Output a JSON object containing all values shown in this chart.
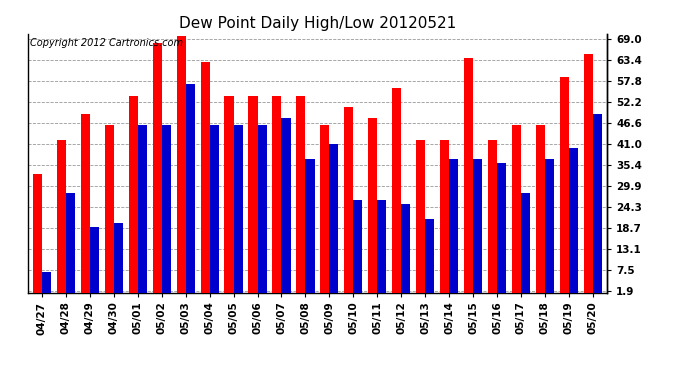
{
  "title": "Dew Point Daily High/Low 20120521",
  "copyright": "Copyright 2012 Cartronics.com",
  "dates": [
    "04/27",
    "04/28",
    "04/29",
    "04/30",
    "05/01",
    "05/02",
    "05/03",
    "05/04",
    "05/05",
    "05/06",
    "05/07",
    "05/08",
    "05/09",
    "05/10",
    "05/11",
    "05/12",
    "05/13",
    "05/14",
    "05/15",
    "05/16",
    "05/17",
    "05/18",
    "05/19",
    "05/20"
  ],
  "high": [
    33.0,
    42.0,
    49.0,
    46.0,
    54.0,
    68.0,
    70.0,
    63.0,
    54.0,
    54.0,
    54.0,
    54.0,
    46.0,
    51.0,
    48.0,
    56.0,
    42.0,
    42.0,
    64.0,
    42.0,
    46.0,
    46.0,
    59.0,
    65.0
  ],
  "low": [
    7.0,
    28.0,
    19.0,
    20.0,
    46.0,
    46.0,
    57.0,
    46.0,
    46.0,
    46.0,
    48.0,
    37.0,
    41.0,
    26.0,
    26.0,
    25.0,
    21.0,
    37.0,
    37.0,
    36.0,
    28.0,
    37.0,
    40.0,
    49.0
  ],
  "high_color": "#ff0000",
  "low_color": "#0000cc",
  "bg_color": "#ffffff",
  "plot_bg": "#ffffff",
  "grid_color": "#999999",
  "yticks": [
    1.9,
    7.5,
    13.1,
    18.7,
    24.3,
    29.9,
    35.4,
    41.0,
    46.6,
    52.2,
    57.8,
    63.4,
    69.0
  ],
  "ymin": 1.9,
  "ymax": 69.0,
  "title_fontsize": 11,
  "tick_fontsize": 7.5,
  "copyright_fontsize": 7
}
